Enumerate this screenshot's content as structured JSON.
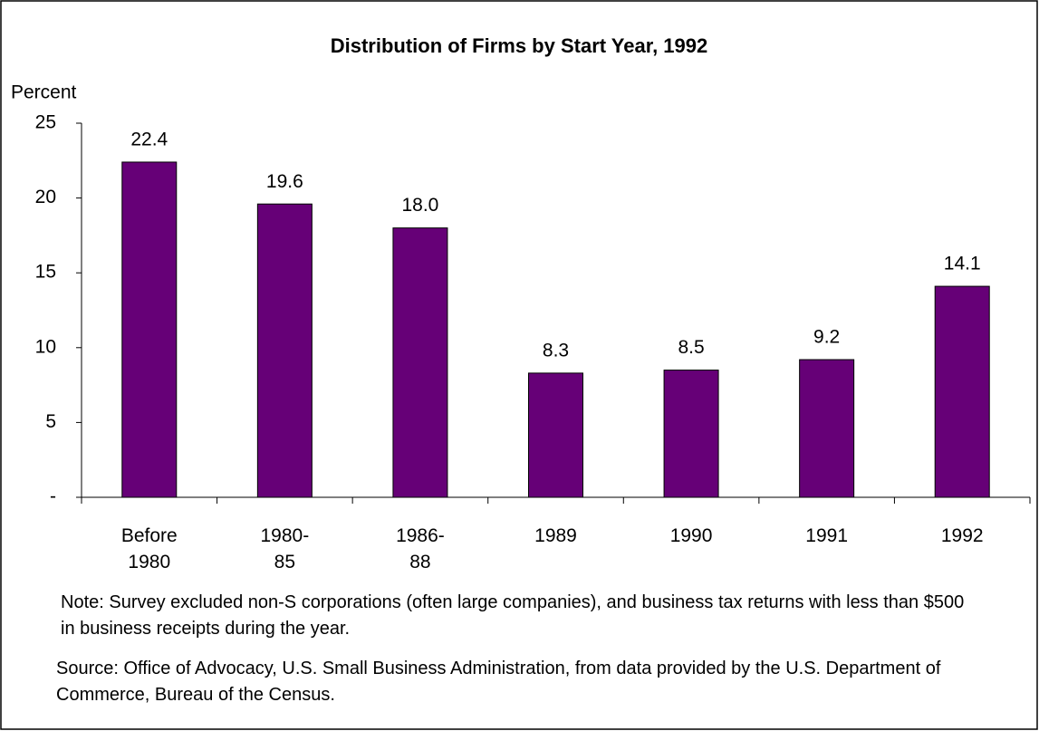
{
  "chart_data": {
    "type": "bar",
    "title": "Distribution of Firms by Start Year, 1992",
    "y_label": "Percent",
    "categories": [
      "Before\n1980",
      "1980-\n85",
      "1986-\n88",
      "1989",
      "1990",
      "1991",
      "1992"
    ],
    "values": [
      22.4,
      19.6,
      18.0,
      8.3,
      8.5,
      9.2,
      14.1
    ],
    "value_labels": [
      "22.4",
      "19.6",
      "18.0",
      "8.3",
      "8.5",
      "9.2",
      "14.1"
    ],
    "color": "#660077",
    "ylim": [
      0,
      25
    ],
    "yticks": [
      {
        "value": 0,
        "label": "-"
      },
      5,
      10,
      15,
      20,
      25
    ],
    "grid": false,
    "note": "Note:  Survey excluded non-S corporations (often large companies), and business tax returns with less than $500 in business receipts during the year.",
    "source": "Source: Office of Advocacy, U.S. Small Business Administration, from data provided by the U.S. Department of Commerce, Bureau of the Census."
  }
}
